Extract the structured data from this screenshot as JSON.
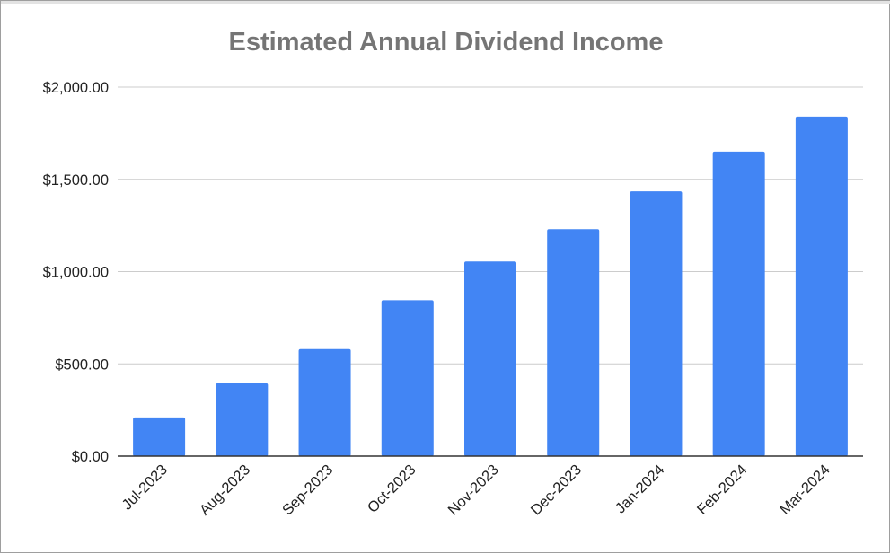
{
  "chart_data": {
    "type": "bar",
    "title": "Estimated Annual Dividend Income",
    "xlabel": "",
    "ylabel": "",
    "categories": [
      "Jul-2023",
      "Aug-2023",
      "Sep-2023",
      "Oct-2023",
      "Nov-2023",
      "Dec-2023",
      "Jan-2024",
      "Feb-2024",
      "Mar-2024"
    ],
    "values": [
      210,
      395,
      580,
      845,
      1055,
      1230,
      1435,
      1650,
      1840
    ],
    "ylim": [
      0,
      2000
    ],
    "yticks": [
      0,
      500,
      1000,
      1500,
      2000
    ],
    "ytick_labels": [
      "$0.00",
      "$500.00",
      "$1,000.00",
      "$1,500.00",
      "$2,000.00"
    ],
    "grid": true,
    "legend": "none",
    "bar_color": "#4285f4",
    "grid_color": "#cccccc",
    "axis_color": "#333333"
  }
}
